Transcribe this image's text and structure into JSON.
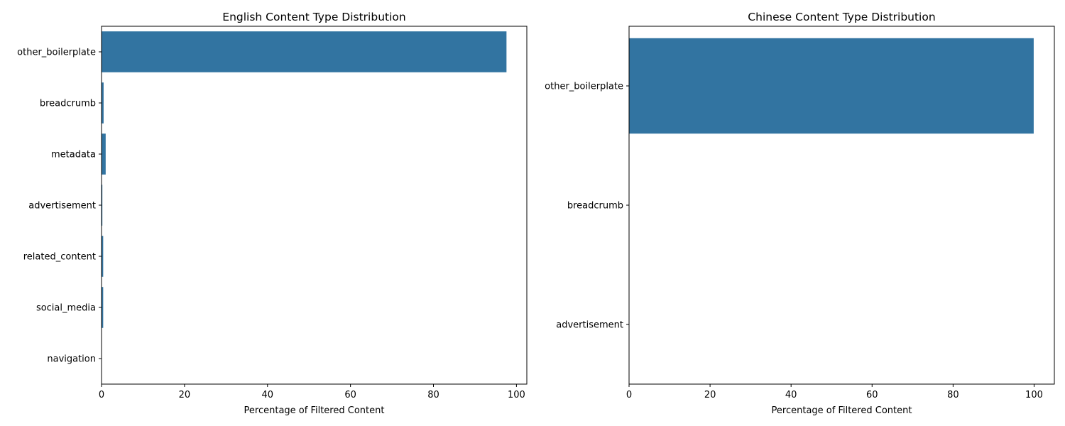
{
  "chart_data": [
    {
      "type": "bar",
      "orientation": "horizontal",
      "title": "English Content Type Distribution",
      "xlabel": "Percentage of Filtered Content",
      "ylabel": "",
      "categories": [
        "other_boilerplate",
        "breadcrumb",
        "metadata",
        "advertisement",
        "related_content",
        "social_media",
        "navigation"
      ],
      "values": [
        97.6,
        0.5,
        1.0,
        0.2,
        0.4,
        0.4,
        0.0
      ],
      "xlim": [
        0,
        102.5
      ],
      "xticks": [
        "0",
        "20",
        "40",
        "60",
        "80",
        "100"
      ],
      "color": "#3274a1",
      "grid": false
    },
    {
      "type": "bar",
      "orientation": "horizontal",
      "title": "Chinese Content Type Distribution",
      "xlabel": "Percentage of Filtered Content",
      "ylabel": "",
      "categories": [
        "other_boilerplate",
        "breadcrumb",
        "advertisement"
      ],
      "values": [
        99.9,
        0.0,
        0.0
      ],
      "xlim": [
        0,
        105
      ],
      "xticks": [
        "0",
        "20",
        "40",
        "60",
        "80",
        "100"
      ],
      "color": "#3274a1",
      "grid": false
    }
  ]
}
